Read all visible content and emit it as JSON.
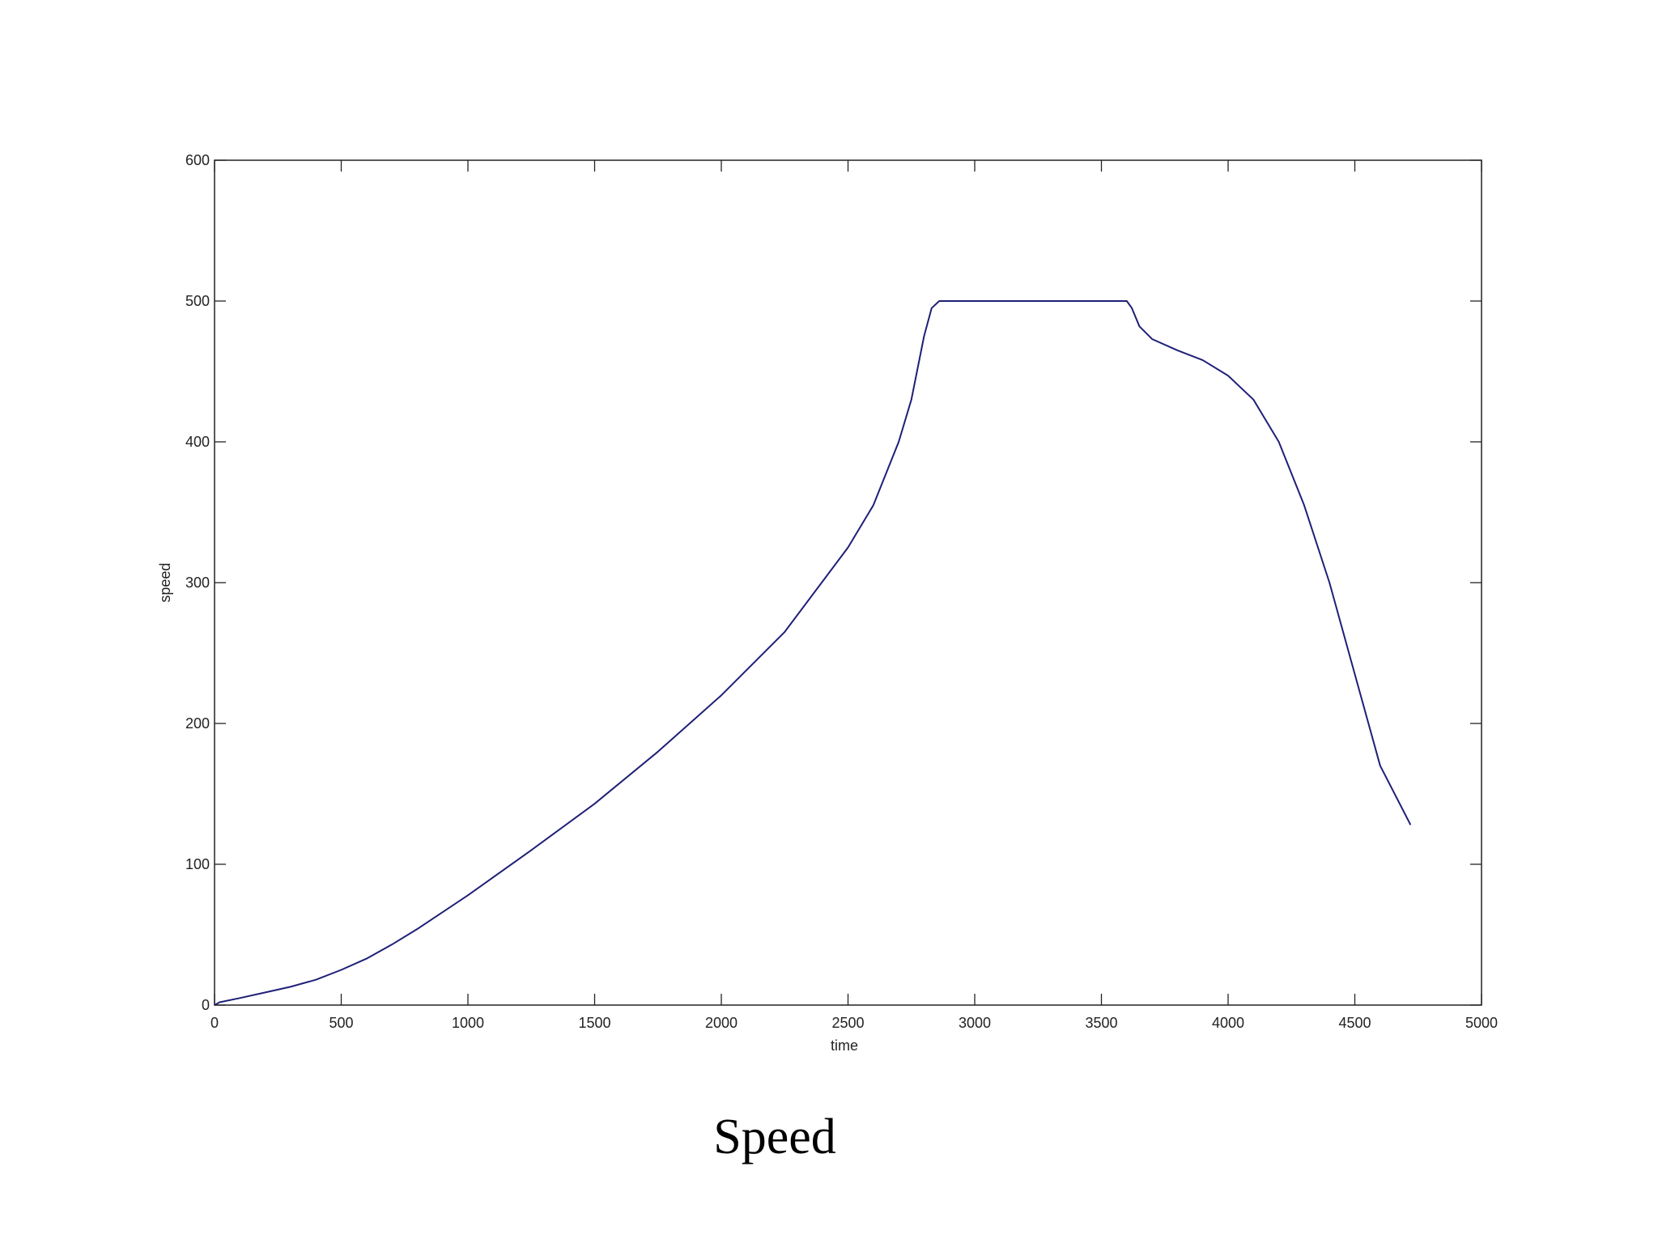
{
  "chart_data": {
    "type": "line",
    "caption": "Speed",
    "xlabel": "time",
    "ylabel": "speed",
    "x": [
      0,
      20,
      100,
      200,
      300,
      400,
      500,
      600,
      700,
      800,
      900,
      1000,
      1250,
      1500,
      1750,
      2000,
      2250,
      2500,
      2600,
      2700,
      2750,
      2800,
      2830,
      2860,
      3000,
      3500,
      3600,
      3620,
      3650,
      3700,
      3800,
      3900,
      4000,
      4100,
      4200,
      4300,
      4400,
      4500,
      4600,
      4720
    ],
    "series": [
      {
        "color": "#1f1f78",
        "values": [
          0,
          2,
          5,
          9,
          13,
          18,
          25,
          33,
          43,
          54,
          66,
          78,
          110,
          143,
          180,
          220,
          265,
          325,
          355,
          400,
          430,
          475,
          495,
          500,
          500,
          500,
          500,
          495,
          482,
          473,
          465,
          458,
          447,
          430,
          400,
          355,
          300,
          235,
          170,
          128
        ]
      }
    ],
    "xlim": [
      0,
      5000
    ],
    "ylim": [
      0,
      600
    ],
    "xticks": [
      0,
      500,
      1000,
      1500,
      2000,
      2500,
      3000,
      3500,
      4000,
      4500,
      5000
    ],
    "yticks": [
      0,
      100,
      200,
      300,
      400,
      500,
      600
    ]
  }
}
